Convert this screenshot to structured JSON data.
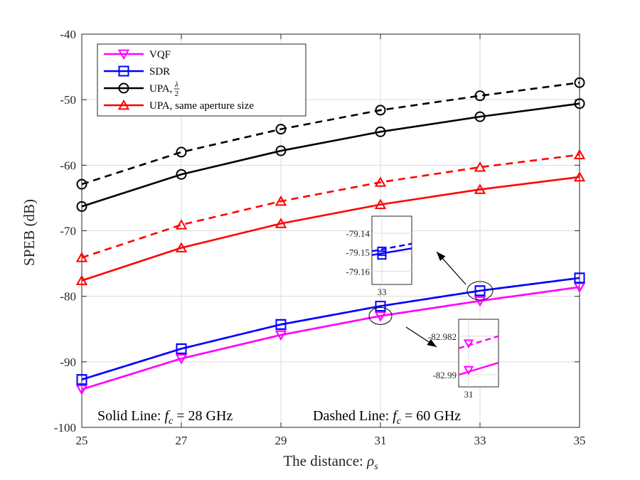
{
  "chart_data": {
    "type": "line",
    "title": "",
    "xlabel": "The distance: ",
    "xlabel_symbol": "ρ",
    "xlabel_subscript": "s",
    "ylabel": "SPEB (dB)",
    "xlim": [
      25,
      35
    ],
    "ylim": [
      -100,
      -40
    ],
    "xticks": [
      25,
      27,
      29,
      31,
      33,
      35
    ],
    "yticks": [
      -100,
      -90,
      -80,
      -70,
      -60,
      -50,
      -40
    ],
    "grid": true,
    "x": [
      25,
      27,
      29,
      31,
      33,
      35
    ],
    "series": [
      {
        "name": "VQF",
        "legend_label": "VQF",
        "style": "solid",
        "color": "#ff00ff",
        "marker": "triangle-down",
        "values": [
          -94.2,
          -89.5,
          -85.9,
          -83.0,
          -80.7,
          -78.6
        ]
      },
      {
        "name": "VQF (60 GHz)",
        "style": "dashed",
        "color": "#ff00ff",
        "marker": "triangle-down",
        "values": [
          -94.2,
          -89.5,
          -85.9,
          -82.99,
          -80.7,
          -78.6
        ]
      },
      {
        "name": "SDR",
        "legend_label": "SDR",
        "style": "solid",
        "color": "#0000ff",
        "marker": "square",
        "values": [
          -92.7,
          -88.0,
          -84.3,
          -81.5,
          -79.15,
          -77.2
        ]
      },
      {
        "name": "SDR (60 GHz)",
        "style": "dashed",
        "color": "#0000ff",
        "marker": "square",
        "values": [
          -92.7,
          -88.0,
          -84.3,
          -81.5,
          -79.15,
          -77.2
        ]
      },
      {
        "name": "UPA, lambda/2",
        "legend_label": "UPA, ",
        "style": "solid",
        "color": "#000000",
        "marker": "circle",
        "values": [
          -66.3,
          -61.4,
          -57.8,
          -54.9,
          -52.6,
          -50.6
        ]
      },
      {
        "name": "UPA, lambda/2 (60 GHz)",
        "style": "dashed",
        "color": "#000000",
        "marker": "circle",
        "values": [
          -62.9,
          -58.0,
          -54.5,
          -51.6,
          -49.4,
          -47.4
        ]
      },
      {
        "name": "UPA, same aperture size",
        "legend_label": "UPA, same aperture size",
        "style": "solid",
        "color": "#ff0000",
        "marker": "triangle-up",
        "values": [
          -77.6,
          -72.6,
          -68.9,
          -66.0,
          -63.7,
          -61.8
        ]
      },
      {
        "name": "UPA, same aperture size (60 GHz)",
        "style": "dashed",
        "color": "#ff0000",
        "marker": "triangle-up",
        "values": [
          -74.1,
          -69.1,
          -65.5,
          -62.6,
          -60.3,
          -58.4
        ]
      }
    ],
    "legend_fraction": {
      "numerator": "λ",
      "denominator": "2"
    },
    "legend_position": "top-left",
    "annotations": {
      "solid_note": {
        "prefix": "Solid Line: ",
        "symbol": "f",
        "subscript": "c",
        "suffix": " = 28 GHz"
      },
      "dashed_note": {
        "prefix": "Dashed Line: ",
        "symbol": "f",
        "subscript": "c",
        "suffix": " = 60 GHz"
      }
    },
    "insets": [
      {
        "name": "sdr-zoom",
        "xtick": "33",
        "yticks": [
          "-79.14",
          "-79.15",
          "-79.16"
        ],
        "ytick_values": [
          -79.14,
          -79.15,
          -79.16
        ],
        "ylim": [
          -79.167,
          -79.131
        ],
        "focus": {
          "x": 33,
          "y": -79.15
        },
        "solid_values": [
          -79.1515,
          -79.148
        ],
        "dashed_values": [
          -79.1495,
          -79.1455
        ],
        "marker_solid": -79.1515,
        "marker_dashed": -79.1495
      },
      {
        "name": "vqf-zoom",
        "xtick": "31",
        "yticks": [
          "-82.982",
          "-82.99"
        ],
        "ytick_values": [
          -82.982,
          -82.99
        ],
        "ylim": [
          -82.9925,
          -82.9785
        ],
        "focus": {
          "x": 31,
          "y": -83.0
        },
        "solid_values": [
          -82.99,
          -82.9875
        ],
        "dashed_values": [
          -82.9845,
          -82.982
        ],
        "marker_solid": -82.989,
        "marker_dashed": -82.9835
      }
    ]
  }
}
